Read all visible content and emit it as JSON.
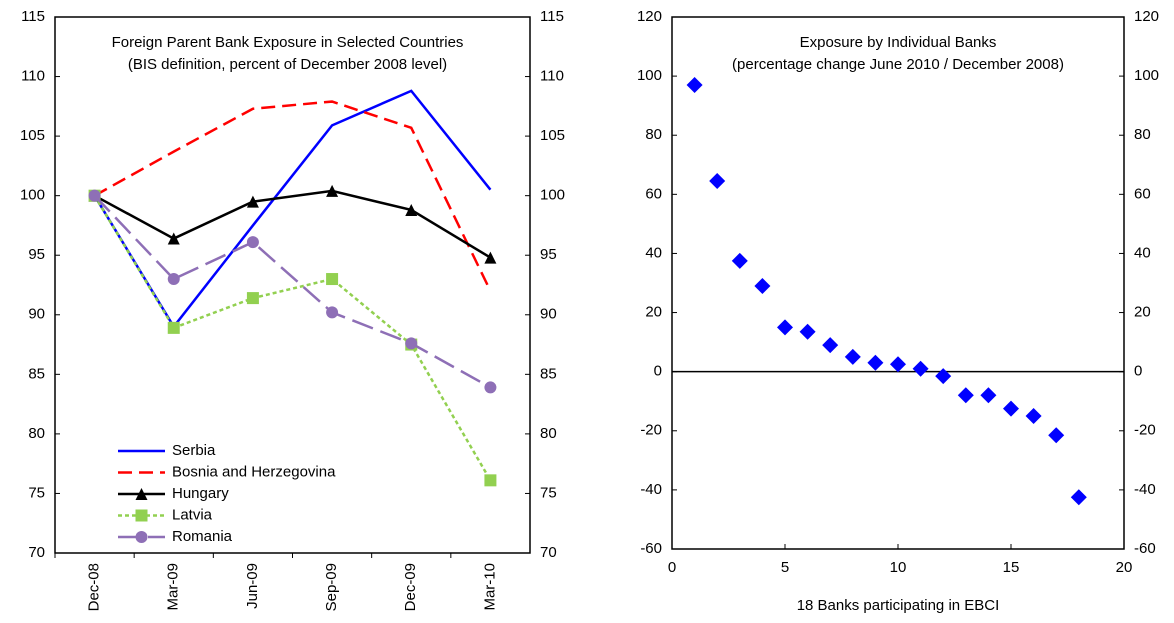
{
  "chart_data": [
    {
      "type": "line",
      "title": "Foreign Parent Bank Exposure in Selected Countries",
      "subtitle": "(BIS definition, percent of December 2008 level)",
      "categories": [
        "Dec-08",
        "Mar-09",
        "Jun-09",
        "Sep-09",
        "Dec-09",
        "Mar-10"
      ],
      "series": [
        {
          "name": "Serbia",
          "color": "#0000ff",
          "dash": "solid",
          "marker": "none",
          "values": [
            100,
            89,
            97.5,
            105.9,
            108.8,
            100.5
          ]
        },
        {
          "name": "Bosnia and Herzegovina",
          "color": "#ff0000",
          "dash": "dashed",
          "marker": "none",
          "values": [
            100,
            103.7,
            107.3,
            107.9,
            105.7,
            92
          ]
        },
        {
          "name": "Hungary",
          "color": "#000000",
          "dash": "solid",
          "marker": "triangle",
          "values": [
            100,
            96.4,
            99.5,
            100.4,
            98.8,
            94.8
          ]
        },
        {
          "name": "Latvia",
          "color": "#92d050",
          "dash": "dotted",
          "marker": "square",
          "values": [
            100,
            88.9,
            91.4,
            93,
            87.5,
            76.1
          ]
        },
        {
          "name": "Romania",
          "color": "#8e6fb6",
          "dash": "longdash",
          "marker": "circle",
          "values": [
            100,
            93,
            96.1,
            90.2,
            87.6,
            83.9
          ]
        }
      ],
      "ylim": [
        70,
        115
      ],
      "yticks": [
        70,
        75,
        80,
        85,
        90,
        95,
        100,
        105,
        110,
        115
      ],
      "y2lim": [
        70,
        115
      ],
      "y2ticks": [
        70,
        75,
        80,
        85,
        90,
        95,
        100,
        105,
        110,
        115
      ],
      "legend": "lower left",
      "grid": false
    },
    {
      "type": "scatter",
      "title": "Exposure by Individual Banks",
      "subtitle": "(percentage change June 2010 / December 2008)",
      "x_label": "18 Banks participating in EBCI",
      "color": "#0000ff",
      "marker": "diamond",
      "x": [
        1,
        2,
        3,
        4,
        5,
        6,
        7,
        8,
        9,
        10,
        11,
        12,
        13,
        14,
        15,
        16,
        17,
        18
      ],
      "values": [
        97,
        64.5,
        37.5,
        29,
        15,
        13.5,
        9,
        5,
        3,
        2.5,
        1,
        -1.5,
        -8,
        -8,
        -12.5,
        -15,
        -21.5,
        -42.5
      ],
      "xlim": [
        0,
        20
      ],
      "xticks": [
        0,
        5,
        10,
        15,
        20
      ],
      "ylim": [
        -60,
        120
      ],
      "yticks": [
        -60,
        -40,
        -20,
        0,
        20,
        40,
        60,
        80,
        100,
        120
      ],
      "y2lim": [
        -60,
        120
      ],
      "y2ticks": [
        -60,
        -40,
        -20,
        0,
        20,
        40,
        60,
        80,
        100,
        120
      ],
      "grid": false
    }
  ]
}
